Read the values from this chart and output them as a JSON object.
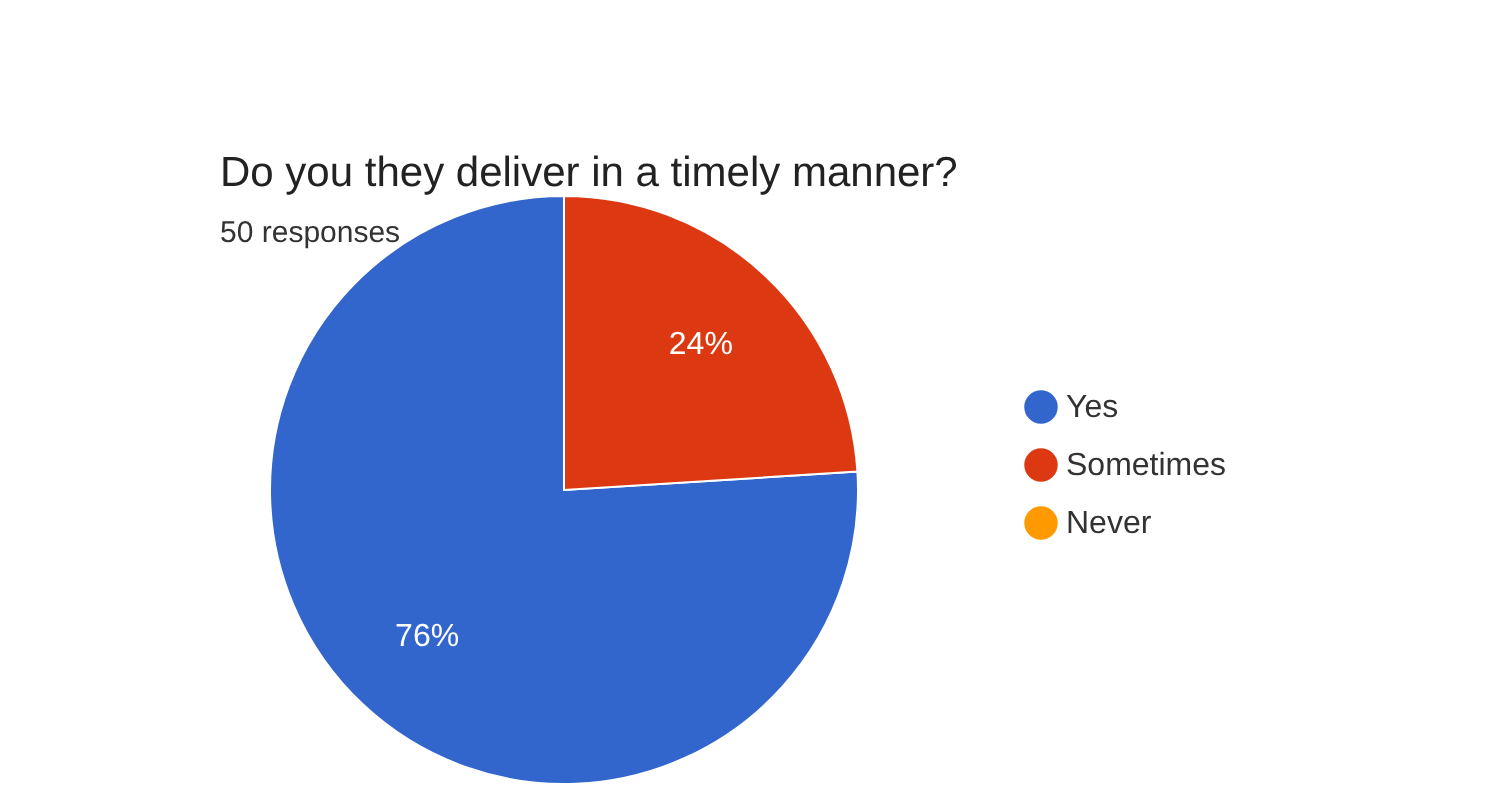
{
  "chart_data": {
    "type": "pie",
    "title": "Do you they deliver in a timely manner?",
    "subtitle": "50 responses",
    "categories": [
      "Yes",
      "Sometimes",
      "Never"
    ],
    "values": [
      76,
      24,
      0
    ],
    "colors": [
      "#3366cc",
      "#dc3912",
      "#ff9900"
    ],
    "value_labels": [
      "76%",
      "24%",
      null
    ],
    "legend": "right"
  }
}
